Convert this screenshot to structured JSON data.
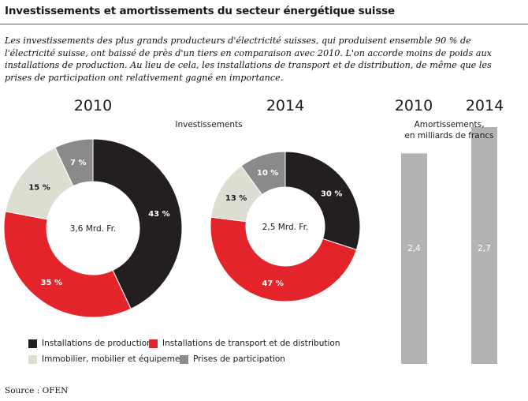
{
  "title": "Investissements et amortissements du secteur énergétique suisse",
  "intro": "Les investissements des plus grands producteurs d'électricité suisses, qui produisent ensemble 90 % de l'électricité suisse, ont baissé de près d'un tiers en comparaison avec 2010. L'on accorde moins de poids aux installations de production. Au lieu de cela, les installations de transport et de distribution, de même que les prises de participation ont relativement gagné en importance.",
  "source": "Source : OFEN",
  "colors": {
    "production": "#231f20",
    "transport": "#e3242b",
    "immobilier": "#ddddd2",
    "participation": "#8a8a8a",
    "bar": "#b3b3b3"
  },
  "chart_data": [
    {
      "type": "pie",
      "subtitle": "Investissements",
      "year": "2010",
      "center_label": "3,6 Mrd. Fr.",
      "slices": [
        {
          "name": "Installations de production",
          "value": 43,
          "label": "43 %"
        },
        {
          "name": "Installations de transport et de distribution",
          "value": 35,
          "label": "35 %"
        },
        {
          "name": "Immobilier, mobilier et équipement",
          "value": 15,
          "label": "15 %"
        },
        {
          "name": "Prises de participation",
          "value": 7,
          "label": "7 %"
        }
      ]
    },
    {
      "type": "pie",
      "year": "2014",
      "center_label": "2,5 Mrd. Fr.",
      "slices": [
        {
          "name": "Installations de production",
          "value": 30,
          "label": "30 %"
        },
        {
          "name": "Installations de transport et de distribution",
          "value": 47,
          "label": "47 %"
        },
        {
          "name": "Immobilier, mobilier et équipement",
          "value": 13,
          "label": "13 %"
        },
        {
          "name": "Prises de participation",
          "value": 10,
          "label": "10 %"
        }
      ]
    },
    {
      "type": "bar",
      "subtitle_line1": "Amortissements,",
      "subtitle_line2": "en milliards de francs",
      "categories": [
        "2010",
        "2014"
      ],
      "values": [
        2.4,
        2.7
      ],
      "value_labels": [
        "2,4",
        "2,7"
      ]
    }
  ],
  "legend": [
    {
      "label": "Installations de production",
      "key": "production"
    },
    {
      "label": "Installations de transport et de distribution",
      "key": "transport"
    },
    {
      "label": "Immobilier, mobilier et équipement",
      "key": "immobilier"
    },
    {
      "label": "Prises de participation",
      "key": "participation"
    }
  ]
}
